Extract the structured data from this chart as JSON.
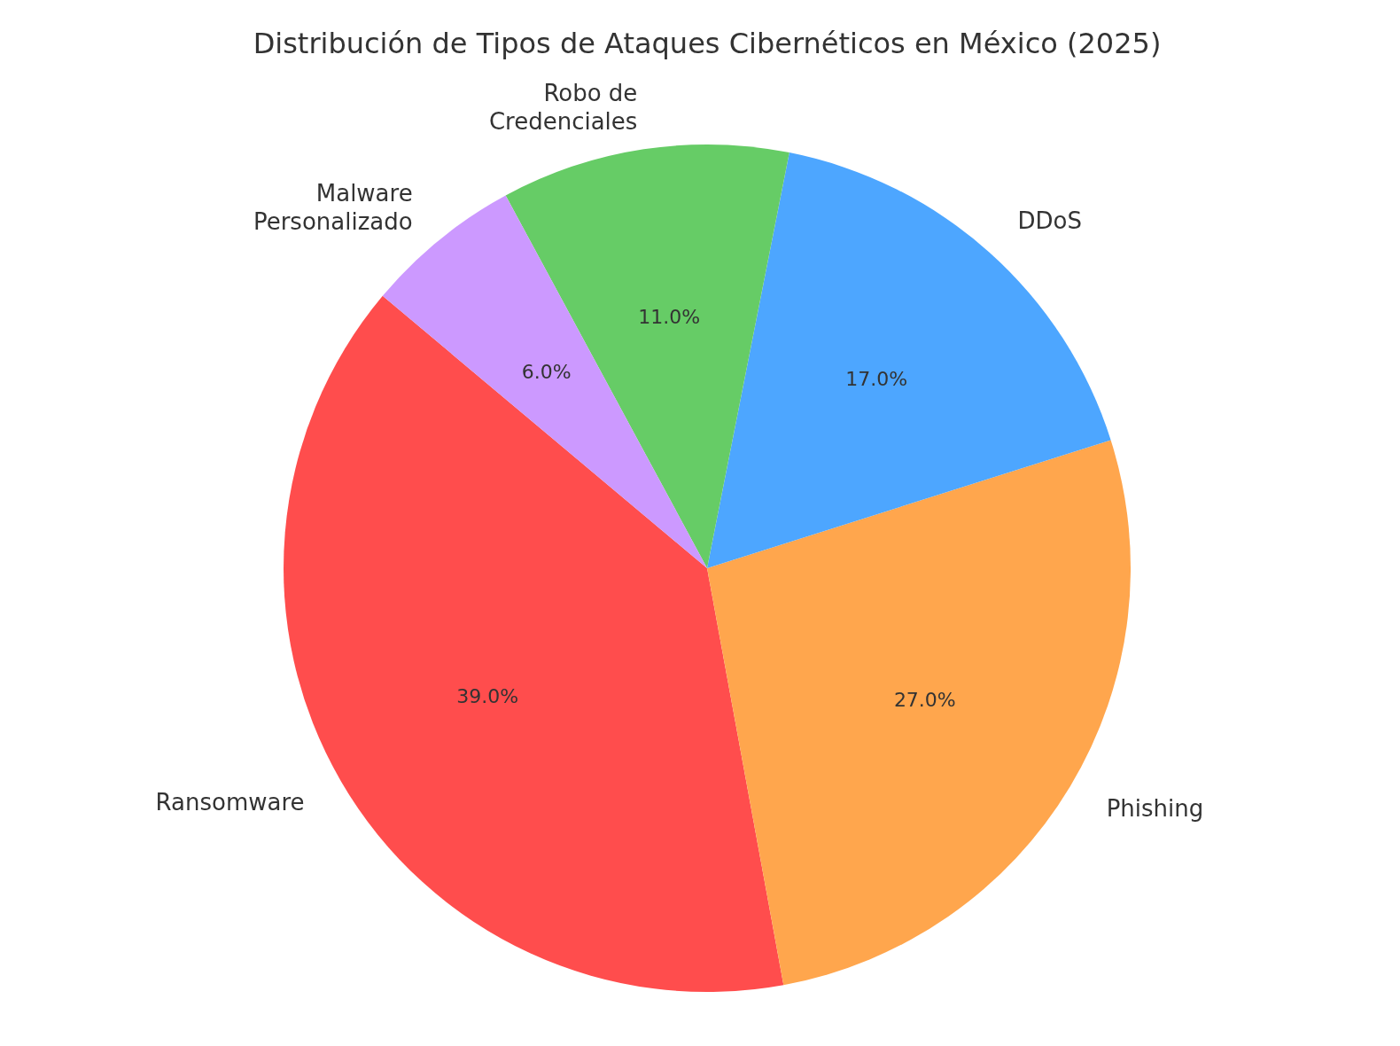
{
  "chart_data": {
    "type": "pie",
    "title": "Distribución de Tipos de Ataques Cibernéticos en México (2025)",
    "categories": [
      "Ransomware",
      "Phishing",
      "DDoS",
      "Robo de\nCredenciales",
      "Malware\nPersonalizado"
    ],
    "values": [
      39,
      27,
      17,
      11,
      6
    ],
    "colors": [
      "#ff4d4d",
      "#ffa64d",
      "#4da6ff",
      "#66cc66",
      "#cc99ff"
    ],
    "value_labels": [
      "39.0%",
      "27.0%",
      "17.0%",
      "11.0%",
      "6.0%"
    ]
  }
}
